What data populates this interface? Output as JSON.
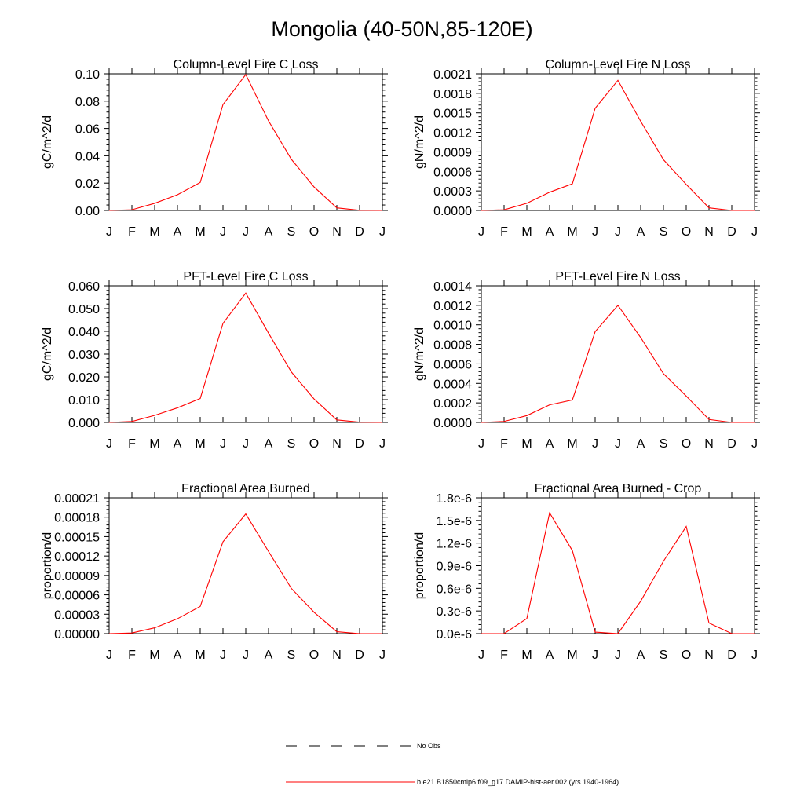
{
  "title": "Mongolia (40-50N,85-120E)",
  "legend": {
    "items": [
      {
        "label": "No Obs",
        "style": "dashed",
        "color": "#000000"
      },
      {
        "label": "b.e21.B1850cmip6.f09_g17.DAMIP-hist-aer.002 (yrs 1940-1964)",
        "style": "solid",
        "color": "#ff0000"
      }
    ]
  },
  "chart_data": [
    {
      "type": "line",
      "title": "Column-Level Fire C Loss",
      "ylabel": "gC/m^2/d",
      "x": [
        "J",
        "F",
        "M",
        "A",
        "M",
        "J",
        "J",
        "A",
        "S",
        "O",
        "N",
        "D",
        "J"
      ],
      "ylim": [
        0,
        0.1
      ],
      "yticks": [
        0.0,
        0.02,
        0.04,
        0.06,
        0.08,
        0.1
      ],
      "ytick_labels": [
        "0.00",
        "0.02",
        "0.04",
        "0.06",
        "0.08",
        "0.10"
      ],
      "series": [
        {
          "color": "#ff0000",
          "values": [
            0.0,
            0.0005,
            0.0052,
            0.0115,
            0.0205,
            0.0775,
            0.0995,
            0.0655,
            0.0375,
            0.0172,
            0.0019,
            0.0001,
            0.0
          ]
        }
      ]
    },
    {
      "type": "line",
      "title": "Column-Level Fire N Loss",
      "ylabel": "gN/m^2/d",
      "x": [
        "J",
        "F",
        "M",
        "A",
        "M",
        "J",
        "J",
        "A",
        "S",
        "O",
        "N",
        "D",
        "J"
      ],
      "ylim": [
        0,
        0.0021
      ],
      "yticks": [
        0.0,
        0.0003,
        0.0006,
        0.0009,
        0.0012,
        0.0015,
        0.0018,
        0.0021
      ],
      "ytick_labels": [
        "0.0000",
        "0.0003",
        "0.0006",
        "0.0009",
        "0.0012",
        "0.0015",
        "0.0018",
        "0.0021"
      ],
      "series": [
        {
          "color": "#ff0000",
          "values": [
            0.0,
            1e-05,
            0.00011,
            0.00028,
            0.00041,
            0.00157,
            0.002,
            0.00137,
            0.00078,
            0.0004,
            4e-05,
            0.0,
            0.0
          ]
        }
      ]
    },
    {
      "type": "line",
      "title": "PFT-Level Fire C Loss",
      "ylabel": "gC/m^2/d",
      "x": [
        "J",
        "F",
        "M",
        "A",
        "M",
        "J",
        "J",
        "A",
        "S",
        "O",
        "N",
        "D",
        "J"
      ],
      "ylim": [
        0,
        0.06
      ],
      "yticks": [
        0.0,
        0.01,
        0.02,
        0.03,
        0.04,
        0.05,
        0.06
      ],
      "ytick_labels": [
        "0.000",
        "0.010",
        "0.020",
        "0.030",
        "0.040",
        "0.050",
        "0.060"
      ],
      "series": [
        {
          "color": "#ff0000",
          "values": [
            0.0,
            0.0004,
            0.0031,
            0.0064,
            0.0105,
            0.0435,
            0.0568,
            0.0392,
            0.0222,
            0.0103,
            0.0011,
            0.0001,
            0.0
          ]
        }
      ]
    },
    {
      "type": "line",
      "title": "PFT-Level Fire N Loss",
      "ylabel": "gN/m^2/d",
      "x": [
        "J",
        "F",
        "M",
        "A",
        "M",
        "J",
        "J",
        "A",
        "S",
        "O",
        "N",
        "D",
        "J"
      ],
      "ylim": [
        0,
        0.0014
      ],
      "yticks": [
        0.0,
        0.0002,
        0.0004,
        0.0006,
        0.0008,
        0.001,
        0.0012,
        0.0014
      ],
      "ytick_labels": [
        "0.0000",
        "0.0002",
        "0.0004",
        "0.0006",
        "0.0008",
        "0.0010",
        "0.0012",
        "0.0014"
      ],
      "series": [
        {
          "color": "#ff0000",
          "values": [
            0.0,
            1e-05,
            7e-05,
            0.00018,
            0.00023,
            0.00093,
            0.0012,
            0.00087,
            0.0005,
            0.00027,
            3e-05,
            0.0,
            0.0
          ]
        }
      ]
    },
    {
      "type": "line",
      "title": "Fractional Area Burned",
      "ylabel": "proportion/d",
      "x": [
        "J",
        "F",
        "M",
        "A",
        "M",
        "J",
        "J",
        "A",
        "S",
        "O",
        "N",
        "D",
        "J"
      ],
      "ylim": [
        0,
        0.00021
      ],
      "yticks": [
        0.0,
        3e-05,
        6e-05,
        9e-05,
        0.00012,
        0.00015,
        0.00018,
        0.00021
      ],
      "ytick_labels": [
        "0.00000",
        "0.00003",
        "0.00006",
        "0.00009",
        "0.00012",
        "0.00015",
        "0.00018",
        "0.00021"
      ],
      "series": [
        {
          "color": "#ff0000",
          "values": [
            0.0,
            1e-06,
            9e-06,
            2.3e-05,
            4.2e-05,
            0.000142,
            0.000185,
            0.000127,
            7e-05,
            3.3e-05,
            3e-06,
            0.0,
            0.0
          ]
        }
      ]
    },
    {
      "type": "line",
      "title": "Fractional Area Burned - Crop",
      "ylabel": "proportion/d",
      "x": [
        "J",
        "F",
        "M",
        "A",
        "M",
        "J",
        "J",
        "A",
        "S",
        "O",
        "N",
        "D",
        "J"
      ],
      "ylim": [
        0,
        1.8e-06
      ],
      "yticks": [
        0.0,
        3e-07,
        6e-07,
        9e-07,
        1.2e-06,
        1.5e-06,
        1.8e-06
      ],
      "ytick_labels": [
        "0.0e-6",
        "0.3e-6",
        "0.6e-6",
        "0.9e-6",
        "1.2e-6",
        "1.5e-6",
        "1.8e-6"
      ],
      "series": [
        {
          "color": "#ff0000",
          "values": [
            0.0,
            0.0,
            2e-07,
            1.6e-06,
            1.1e-06,
            2e-08,
            0.0,
            4.3e-07,
            9.6e-07,
            1.42e-06,
            1.4e-07,
            0.0,
            0.0
          ]
        }
      ]
    }
  ]
}
